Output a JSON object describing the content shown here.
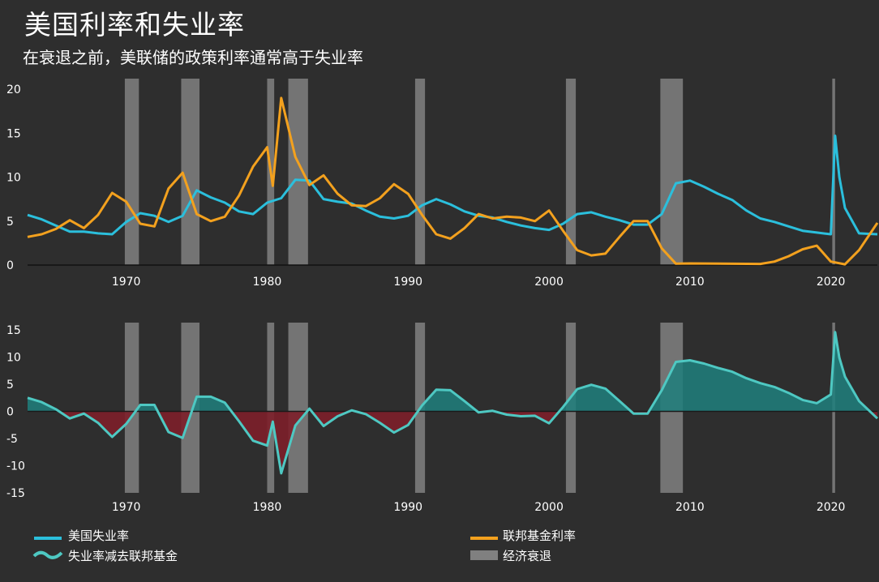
{
  "title": "美国利率和失业率",
  "subtitle": "在衰退之前，美联储的政策利率通常高于失业率",
  "colors": {
    "unemployment": "#2bbfdc",
    "fed_funds": "#f3a11e",
    "difference_line": "#4ec8c2",
    "difference_pos_fill": "#1f7f7d",
    "difference_neg_fill": "#7d1f2a",
    "recession": "#808080"
  },
  "legend": {
    "unemployment": "美国失业率",
    "fed_funds": "联邦基金利率",
    "difference": "失业率减去联邦基金",
    "recession": "经济衰退"
  },
  "chart_data": [
    {
      "type": "line",
      "title": "",
      "xlabel": "",
      "ylabel": "",
      "xlim": [
        1963.0,
        2023.3
      ],
      "ylim": [
        0,
        20
      ],
      "x_ticks": [
        1970,
        1980,
        1990,
        2000,
        2010,
        2020
      ],
      "y_ticks": [
        0,
        5,
        10,
        15,
        20
      ],
      "recessions": [
        [
          1969.9,
          1970.9
        ],
        [
          1973.9,
          1975.2
        ],
        [
          1980.0,
          1980.5
        ],
        [
          1981.5,
          1982.9
        ],
        [
          1990.5,
          1991.2
        ],
        [
          2001.2,
          2001.9
        ],
        [
          2007.9,
          2009.5
        ],
        [
          2020.1,
          2020.3
        ]
      ],
      "series": [
        {
          "name": "美国失业率",
          "key": "unemployment",
          "points": [
            [
              1963,
              5.7
            ],
            [
              1964,
              5.2
            ],
            [
              1965,
              4.5
            ],
            [
              1966,
              3.8
            ],
            [
              1967,
              3.8
            ],
            [
              1968,
              3.6
            ],
            [
              1969,
              3.5
            ],
            [
              1970,
              4.9
            ],
            [
              1971,
              5.9
            ],
            [
              1972,
              5.6
            ],
            [
              1973,
              4.9
            ],
            [
              1974,
              5.6
            ],
            [
              1975,
              8.5
            ],
            [
              1976,
              7.7
            ],
            [
              1977,
              7.1
            ],
            [
              1978,
              6.1
            ],
            [
              1979,
              5.8
            ],
            [
              1980,
              7.1
            ],
            [
              1981,
              7.6
            ],
            [
              1982,
              9.7
            ],
            [
              1983,
              9.6
            ],
            [
              1984,
              7.5
            ],
            [
              1985,
              7.2
            ],
            [
              1986,
              7.0
            ],
            [
              1987,
              6.2
            ],
            [
              1988,
              5.5
            ],
            [
              1989,
              5.3
            ],
            [
              1990,
              5.6
            ],
            [
              1991,
              6.8
            ],
            [
              1992,
              7.5
            ],
            [
              1993,
              6.9
            ],
            [
              1994,
              6.1
            ],
            [
              1995,
              5.6
            ],
            [
              1996,
              5.4
            ],
            [
              1997,
              4.9
            ],
            [
              1998,
              4.5
            ],
            [
              1999,
              4.2
            ],
            [
              2000,
              4.0
            ],
            [
              2001,
              4.7
            ],
            [
              2002,
              5.8
            ],
            [
              2003,
              6.0
            ],
            [
              2004,
              5.5
            ],
            [
              2005,
              5.1
            ],
            [
              2006,
              4.6
            ],
            [
              2007,
              4.6
            ],
            [
              2008,
              5.8
            ],
            [
              2009,
              9.3
            ],
            [
              2010,
              9.6
            ],
            [
              2011,
              8.9
            ],
            [
              2012,
              8.1
            ],
            [
              2013,
              7.4
            ],
            [
              2014,
              6.2
            ],
            [
              2015,
              5.3
            ],
            [
              2016,
              4.9
            ],
            [
              2017,
              4.4
            ],
            [
              2018,
              3.9
            ],
            [
              2019,
              3.7
            ],
            [
              2020.0,
              3.5
            ],
            [
              2020.3,
              14.7
            ],
            [
              2020.6,
              10.0
            ],
            [
              2021,
              6.5
            ],
            [
              2022,
              3.6
            ],
            [
              2023.3,
              3.5
            ]
          ]
        },
        {
          "name": "联邦基金利率",
          "key": "fed_funds",
          "points": [
            [
              1963,
              3.2
            ],
            [
              1964,
              3.5
            ],
            [
              1965,
              4.1
            ],
            [
              1966,
              5.1
            ],
            [
              1967,
              4.2
            ],
            [
              1968,
              5.7
            ],
            [
              1969,
              8.2
            ],
            [
              1970,
              7.2
            ],
            [
              1971,
              4.7
            ],
            [
              1972,
              4.4
            ],
            [
              1973,
              8.7
            ],
            [
              1974,
              10.5
            ],
            [
              1975,
              5.8
            ],
            [
              1976,
              5.0
            ],
            [
              1977,
              5.5
            ],
            [
              1978,
              7.9
            ],
            [
              1979,
              11.2
            ],
            [
              1980,
              13.4
            ],
            [
              1980.4,
              9.0
            ],
            [
              1981,
              19.0
            ],
            [
              1982,
              12.3
            ],
            [
              1983,
              9.1
            ],
            [
              1984,
              10.2
            ],
            [
              1985,
              8.1
            ],
            [
              1986,
              6.8
            ],
            [
              1987,
              6.7
            ],
            [
              1988,
              7.6
            ],
            [
              1989,
              9.2
            ],
            [
              1990,
              8.1
            ],
            [
              1991,
              5.7
            ],
            [
              1992,
              3.5
            ],
            [
              1993,
              3.0
            ],
            [
              1994,
              4.2
            ],
            [
              1995,
              5.8
            ],
            [
              1996,
              5.3
            ],
            [
              1997,
              5.5
            ],
            [
              1998,
              5.4
            ],
            [
              1999,
              5.0
            ],
            [
              2000,
              6.2
            ],
            [
              2001,
              3.9
            ],
            [
              2002,
              1.7
            ],
            [
              2003,
              1.1
            ],
            [
              2004,
              1.3
            ],
            [
              2005,
              3.2
            ],
            [
              2006,
              5.0
            ],
            [
              2007,
              5.0
            ],
            [
              2008,
              1.9
            ],
            [
              2009,
              0.16
            ],
            [
              2010,
              0.18
            ],
            [
              2015,
              0.13
            ],
            [
              2016,
              0.4
            ],
            [
              2017,
              1.0
            ],
            [
              2018,
              1.8
            ],
            [
              2019,
              2.2
            ],
            [
              2020,
              0.4
            ],
            [
              2021,
              0.08
            ],
            [
              2022,
              1.7
            ],
            [
              2023.3,
              4.8
            ]
          ]
        }
      ]
    },
    {
      "type": "area",
      "title": "",
      "xlabel": "",
      "ylabel": "",
      "xlim": [
        1963.0,
        2023.3
      ],
      "ylim": [
        -15,
        15
      ],
      "x_ticks": [
        1970,
        1980,
        1990,
        2000,
        2010,
        2020
      ],
      "y_ticks": [
        15,
        10,
        5,
        0,
        -5,
        -10,
        -15
      ],
      "series": [
        {
          "name": "失业率减去联邦基金",
          "key": "difference",
          "points": [
            [
              1963,
              2.5
            ],
            [
              1964,
              1.7
            ],
            [
              1965,
              0.4
            ],
            [
              1966,
              -1.3
            ],
            [
              1967,
              -0.4
            ],
            [
              1968,
              -2.1
            ],
            [
              1969,
              -4.7
            ],
            [
              1970,
              -2.3
            ],
            [
              1971,
              1.2
            ],
            [
              1972,
              1.2
            ],
            [
              1973,
              -3.8
            ],
            [
              1974,
              -4.9
            ],
            [
              1975,
              2.7
            ],
            [
              1976,
              2.7
            ],
            [
              1977,
              1.6
            ],
            [
              1978,
              -1.8
            ],
            [
              1979,
              -5.4
            ],
            [
              1980,
              -6.3
            ],
            [
              1980.4,
              -1.9
            ],
            [
              1981,
              -11.4
            ],
            [
              1982,
              -2.6
            ],
            [
              1983,
              0.5
            ],
            [
              1984,
              -2.7
            ],
            [
              1985,
              -0.9
            ],
            [
              1986,
              0.2
            ],
            [
              1987,
              -0.5
            ],
            [
              1988,
              -2.1
            ],
            [
              1989,
              -3.9
            ],
            [
              1990,
              -2.5
            ],
            [
              1991,
              1.1
            ],
            [
              1992,
              4.0
            ],
            [
              1993,
              3.9
            ],
            [
              1994,
              1.9
            ],
            [
              1995,
              -0.2
            ],
            [
              1996,
              0.1
            ],
            [
              1997,
              -0.6
            ],
            [
              1998,
              -0.9
            ],
            [
              1999,
              -0.8
            ],
            [
              2000,
              -2.2
            ],
            [
              2001,
              0.8
            ],
            [
              2002,
              4.1
            ],
            [
              2003,
              4.9
            ],
            [
              2004,
              4.2
            ],
            [
              2005,
              1.9
            ],
            [
              2006,
              -0.4
            ],
            [
              2007,
              -0.4
            ],
            [
              2008,
              3.9
            ],
            [
              2009,
              9.1
            ],
            [
              2010,
              9.4
            ],
            [
              2011,
              8.8
            ],
            [
              2012,
              8.0
            ],
            [
              2013,
              7.3
            ],
            [
              2014,
              6.1
            ],
            [
              2015,
              5.2
            ],
            [
              2016,
              4.5
            ],
            [
              2017,
              3.4
            ],
            [
              2018,
              2.1
            ],
            [
              2019,
              1.5
            ],
            [
              2020.0,
              3.1
            ],
            [
              2020.3,
              14.6
            ],
            [
              2020.6,
              9.9
            ],
            [
              2021,
              6.4
            ],
            [
              2022,
              1.9
            ],
            [
              2023.3,
              -1.3
            ]
          ]
        }
      ]
    }
  ]
}
